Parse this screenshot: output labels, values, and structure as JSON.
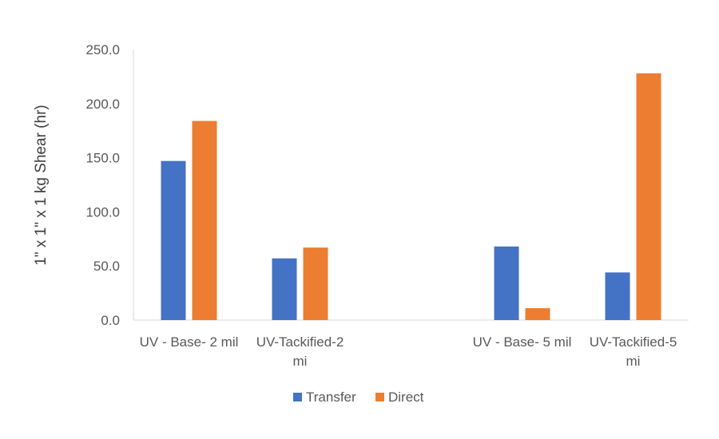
{
  "chart_data": {
    "type": "bar",
    "title": "",
    "xlabel": "",
    "ylabel": "1\" x 1\" x 1 kg Shear (hr)",
    "ylim": [
      0,
      250
    ],
    "yticks": [
      "0.0",
      "50.0",
      "100.0",
      "150.0",
      "200.0",
      "250.0"
    ],
    "categories": [
      [
        "UV - Base- 2 mil"
      ],
      [
        "UV-Tackified-2",
        "mi"
      ],
      [
        ""
      ],
      [
        "UV - Base- 5 mil"
      ],
      [
        "UV-Tackified-5",
        "mi"
      ]
    ],
    "series": [
      {
        "name": "Transfer",
        "color": "#4472C4",
        "values": [
          147,
          57,
          null,
          68,
          44
        ]
      },
      {
        "name": "Direct",
        "color": "#ED7D31",
        "values": [
          184,
          67,
          null,
          11,
          228
        ]
      }
    ],
    "grid": false,
    "legend": "bottom"
  }
}
